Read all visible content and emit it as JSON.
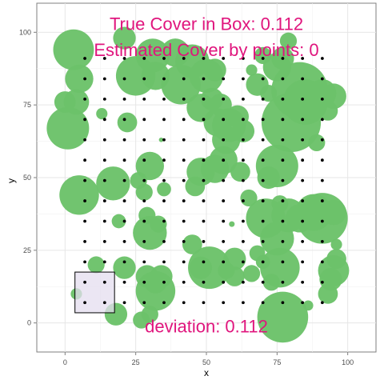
{
  "chart_data": {
    "type": "scatter",
    "title": "",
    "xlabel": "x",
    "ylabel": "y",
    "xlim": [
      -10,
      110
    ],
    "ylim": [
      -10,
      110
    ],
    "x_ticks": [
      0,
      25,
      50,
      75,
      100
    ],
    "y_ticks": [
      0,
      25,
      50,
      75,
      100
    ],
    "grid": true,
    "annotations": [
      {
        "text": "True Cover in Box: 0.112",
        "x": 50,
        "y": 103,
        "color": "#e0157d"
      },
      {
        "text": "Estimated Cover by points: 0",
        "x": 50,
        "y": 94,
        "color": "#e0157d"
      },
      {
        "text": "deviation: 0.112",
        "x": 50,
        "y": -1,
        "color": "#e0157d"
      }
    ],
    "sample_box": {
      "xmin": 3.5,
      "xmax": 17.5,
      "ymin": 3.5,
      "ymax": 17.5,
      "fill": "#e4ddef",
      "stroke": "#000000"
    },
    "circle_color": "#6cc26a",
    "point_color": "#000000",
    "circles": [
      [
        3,
        94,
        7.2
      ],
      [
        5,
        84,
        5
      ],
      [
        1,
        67,
        7.5
      ],
      [
        0,
        76,
        3.8
      ],
      [
        4,
        76,
        4.5
      ],
      [
        13,
        72,
        2
      ],
      [
        21,
        98,
        4
      ],
      [
        22,
        69,
        3.5
      ],
      [
        25,
        85,
        7
      ],
      [
        31,
        92,
        6
      ],
      [
        32,
        85,
        5
      ],
      [
        39,
        93,
        5
      ],
      [
        41,
        82,
        7
      ],
      [
        45,
        90,
        6
      ],
      [
        48,
        74,
        5
      ],
      [
        50,
        85,
        6
      ],
      [
        53,
        87,
        4
      ],
      [
        52,
        77,
        4
      ],
      [
        54,
        69,
        5
      ],
      [
        55,
        75,
        4
      ],
      [
        58,
        68,
        6
      ],
      [
        61,
        71,
        4
      ],
      [
        63,
        66,
        4
      ],
      [
        66,
        87,
        2
      ],
      [
        68,
        82,
        4
      ],
      [
        72,
        79,
        3
      ],
      [
        70,
        92,
        3
      ],
      [
        75,
        88,
        5
      ],
      [
        77,
        91,
        4
      ],
      [
        79,
        97,
        3
      ],
      [
        80,
        69,
        10.5
      ],
      [
        83,
        80,
        10
      ],
      [
        85,
        76,
        8
      ],
      [
        87,
        77,
        6
      ],
      [
        91,
        79,
        5
      ],
      [
        95,
        78,
        4.5
      ],
      [
        93,
        73,
        3.5
      ],
      [
        89,
        62,
        3
      ],
      [
        34,
        63,
        0.8
      ],
      [
        5,
        44,
        7
      ],
      [
        17,
        48,
        6
      ],
      [
        30,
        54,
        5
      ],
      [
        28,
        45,
        3
      ],
      [
        26,
        49,
        3
      ],
      [
        35,
        46,
        2.5
      ],
      [
        46,
        47,
        3.5
      ],
      [
        48,
        52,
        5
      ],
      [
        53,
        53,
        5
      ],
      [
        56,
        56,
        5
      ],
      [
        57,
        63,
        5
      ],
      [
        62,
        52,
        3.5
      ],
      [
        65,
        43,
        3
      ],
      [
        72,
        50,
        4
      ],
      [
        75,
        54,
        7.5
      ],
      [
        76,
        41,
        3
      ],
      [
        71,
        36,
        7
      ],
      [
        75,
        29,
        6
      ],
      [
        79,
        37,
        6
      ],
      [
        83,
        36,
        5
      ],
      [
        88,
        38,
        6.5
      ],
      [
        91,
        36,
        9
      ],
      [
        95,
        38,
        4.5
      ],
      [
        96,
        27,
        2
      ],
      [
        95,
        18,
        5.5
      ],
      [
        94,
        15,
        4
      ],
      [
        93,
        10,
        3.5
      ],
      [
        96,
        22,
        3.5
      ],
      [
        76,
        19,
        7
      ],
      [
        77,
        2,
        9
      ],
      [
        86,
        6,
        1.8
      ],
      [
        73,
        14,
        3
      ],
      [
        70,
        21,
        2.5
      ],
      [
        68,
        24,
        2.8
      ],
      [
        66,
        17,
        3
      ],
      [
        60,
        22,
        4
      ],
      [
        60,
        16,
        3.5
      ],
      [
        57,
        18,
        3
      ],
      [
        51,
        19,
        7.5
      ],
      [
        48,
        19,
        4
      ],
      [
        45,
        27,
        3.5
      ],
      [
        59,
        34,
        1
      ],
      [
        34,
        16,
        4
      ],
      [
        32,
        14,
        4
      ],
      [
        32,
        11,
        7
      ],
      [
        29,
        16,
        4
      ],
      [
        30,
        31,
        6
      ],
      [
        29,
        37,
        3
      ],
      [
        33,
        34,
        3
      ],
      [
        21,
        19,
        4
      ],
      [
        19,
        35,
        2.5
      ],
      [
        11,
        20,
        3
      ],
      [
        18,
        3,
        4
      ],
      [
        27,
        1,
        3
      ],
      [
        30,
        3,
        3
      ],
      [
        4,
        10,
        2
      ]
    ],
    "grid_points": {
      "x_values": [
        7,
        14,
        21,
        28,
        35,
        42,
        49,
        56,
        63,
        70,
        77,
        84,
        91
      ],
      "y_values": [
        7,
        14,
        21,
        28,
        35,
        42,
        49,
        56,
        63,
        70,
        77,
        84,
        91
      ]
    }
  }
}
